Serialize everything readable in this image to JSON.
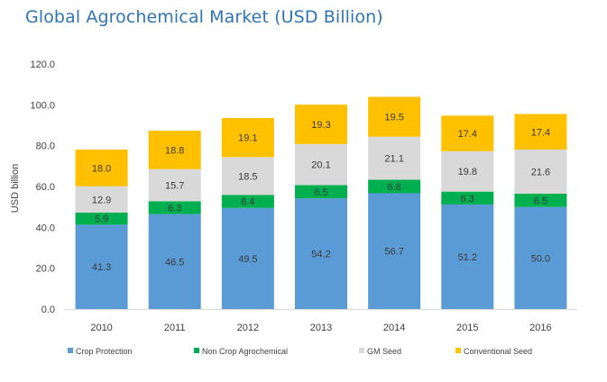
{
  "title": "Global Agrochemical Market (USD Billion)",
  "chart_data": {
    "type": "bar",
    "stacked": true,
    "title": "Global Agrochemical Market (USD Billion)",
    "xlabel": "",
    "ylabel": "USD billion",
    "ylim": [
      0,
      120
    ],
    "yticks": [
      "0.0",
      "20.0",
      "40.0",
      "60.0",
      "80.0",
      "100.0",
      "120.0"
    ],
    "grid": false,
    "legend_position": "bottom",
    "categories": [
      "2010",
      "2011",
      "2012",
      "2013",
      "2014",
      "2015",
      "2016"
    ],
    "series": [
      {
        "name": "Crop Protection",
        "color": "#5b9bd5",
        "values": [
          41.3,
          46.5,
          49.5,
          54.2,
          56.7,
          51.2,
          50.0
        ],
        "labels": [
          "41.3",
          "46.5",
          "49.5",
          "54.2",
          "56.7",
          "51.2",
          "50.0"
        ]
      },
      {
        "name": "Non Crop Agrochemical",
        "color": "#00b050",
        "values": [
          5.9,
          6.3,
          6.4,
          6.5,
          6.6,
          6.3,
          6.5
        ],
        "labels": [
          "5.9",
          "6.3",
          "6.4",
          "6.5",
          "6.6",
          "6.3",
          "6.5"
        ]
      },
      {
        "name": "GM Seed",
        "color": "#d9d9d9",
        "values": [
          12.9,
          15.7,
          18.5,
          20.1,
          21.1,
          19.8,
          21.6
        ],
        "labels": [
          "12.9",
          "15.7",
          "18.5",
          "20.1",
          "21.1",
          "19.8",
          "21.6"
        ]
      },
      {
        "name": "Conventional Seed",
        "color": "#ffc000",
        "values": [
          18.0,
          18.8,
          19.1,
          19.3,
          19.5,
          17.4,
          17.4
        ],
        "labels": [
          "18.0",
          "18.8",
          "19.1",
          "19.3",
          "19.5",
          "17.4",
          "17.4"
        ]
      }
    ]
  }
}
